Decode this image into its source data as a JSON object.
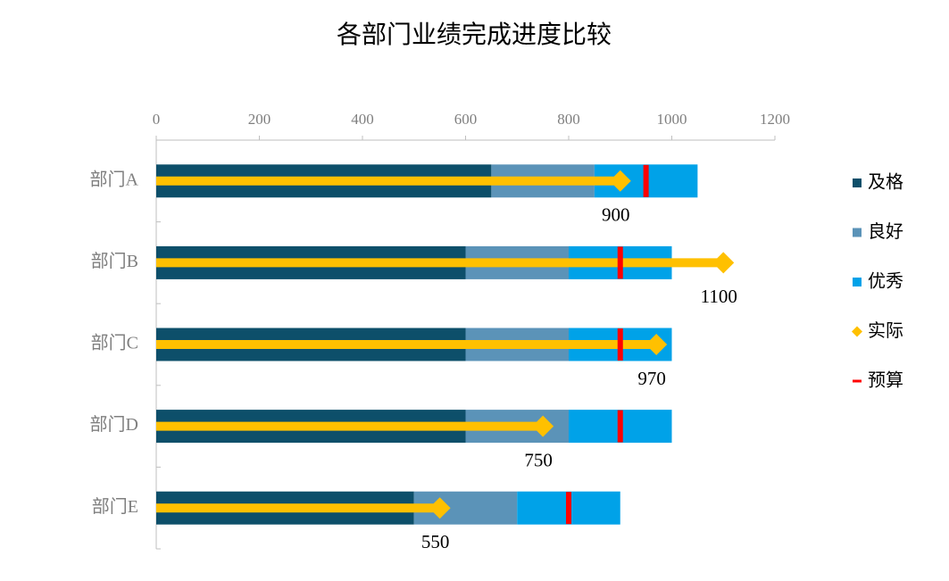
{
  "chart_data": {
    "type": "bullet",
    "title": "各部门业绩完成进度比较",
    "categories": [
      "部门A",
      "部门B",
      "部门C",
      "部门D",
      "部门E"
    ],
    "series": [
      {
        "name": "及格",
        "type": "bar",
        "color": "#0d4f6a",
        "values": [
          650,
          600,
          600,
          600,
          500
        ]
      },
      {
        "name": "良好",
        "type": "bar",
        "color": "#5b93b8",
        "values": [
          200,
          200,
          200,
          200,
          200
        ]
      },
      {
        "name": "优秀",
        "type": "bar",
        "color": "#00a2e8",
        "values": [
          200,
          200,
          200,
          200,
          200
        ]
      },
      {
        "name": "实际",
        "type": "marker",
        "color": "#ffc000",
        "values": [
          900,
          1100,
          970,
          750,
          550
        ]
      },
      {
        "name": "预算",
        "type": "target",
        "color": "#ff0000",
        "values": [
          950,
          900,
          900,
          900,
          800
        ]
      }
    ],
    "xlim": [
      0,
      1200
    ],
    "xticks": [
      0,
      200,
      400,
      600,
      800,
      1000,
      1200
    ],
    "legend": "right"
  }
}
